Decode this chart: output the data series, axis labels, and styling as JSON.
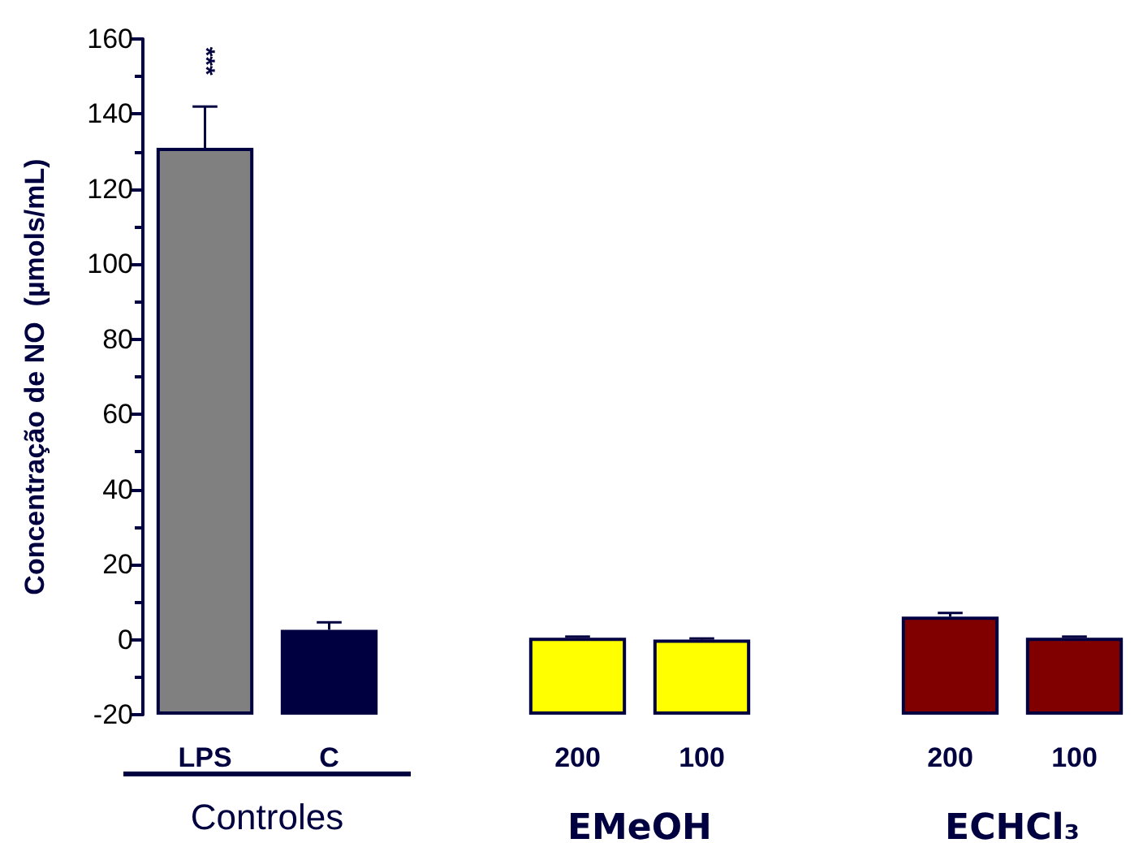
{
  "chart_data": {
    "type": "bar",
    "ylabel": "Concentração de NO  (µmols/mL)",
    "categories": [
      "LPS",
      "C",
      null,
      "200",
      "100",
      null,
      "200",
      "100"
    ],
    "base": [
      -20,
      -20,
      null,
      -20,
      -20,
      null,
      -20,
      -20
    ],
    "values": [
      151,
      22.6,
      null,
      20.5,
      20,
      null,
      26.1,
      20.5
    ],
    "colors": [
      "#808080",
      "#000040",
      null,
      "#ffff00",
      "#ffff00",
      null,
      "#800000",
      "#800000"
    ],
    "errors": [
      11,
      2,
      null,
      0.3,
      0.3,
      null,
      1,
      0.3
    ],
    "ylim": [
      -20,
      160
    ],
    "yticks": [
      -20,
      0,
      20,
      40,
      60,
      80,
      100,
      120,
      140,
      160
    ],
    "grid": false,
    "annotations": [
      "***",
      "Controles",
      "EMeOH",
      "ECHCl₃"
    ]
  }
}
